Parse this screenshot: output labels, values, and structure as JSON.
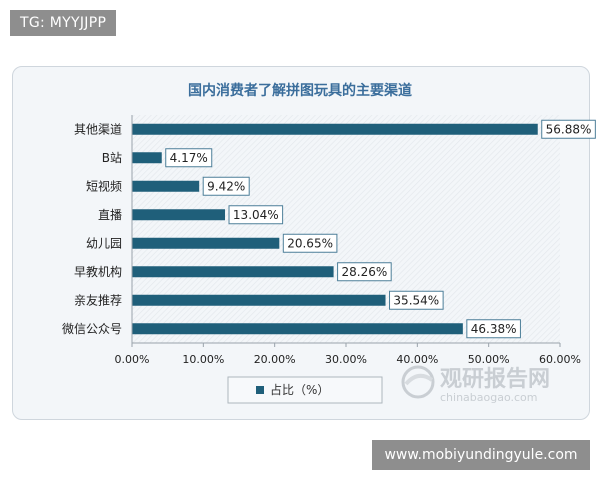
{
  "watermark_top": "TG: MYYJJPP",
  "watermark_bottom": "www.mobiyundingyule.com",
  "logo": {
    "name": "观研报告网",
    "domain": "chinabaogao.com"
  },
  "colors": {
    "bar": "#1f5f7a",
    "title": "#3b6e9c",
    "frame_bg": "#f3f6f9",
    "badge_bg": "#8e8e8e"
  },
  "chart_data": {
    "type": "bar",
    "orientation": "horizontal",
    "title": "国内消费者了解拼图玩具的主要渠道",
    "categories": [
      "其他渠道",
      "B站",
      "短视频",
      "直播",
      "幼儿园",
      "早教机构",
      "亲友推荐",
      "微信公众号"
    ],
    "series": [
      {
        "name": "占比（%）",
        "values": [
          56.88,
          4.17,
          9.42,
          13.04,
          20.65,
          28.26,
          35.54,
          46.38
        ]
      }
    ],
    "data_labels": [
      "56.88%",
      "4.17%",
      "9.42%",
      "13.04%",
      "20.65%",
      "28.26%",
      "35.54%",
      "46.38%"
    ],
    "xlim": [
      0,
      60
    ],
    "x_ticks": [
      "0.00%",
      "10.00%",
      "20.00%",
      "30.00%",
      "40.00%",
      "50.00%",
      "60.00%"
    ],
    "legend": "bottom",
    "grid": false
  }
}
